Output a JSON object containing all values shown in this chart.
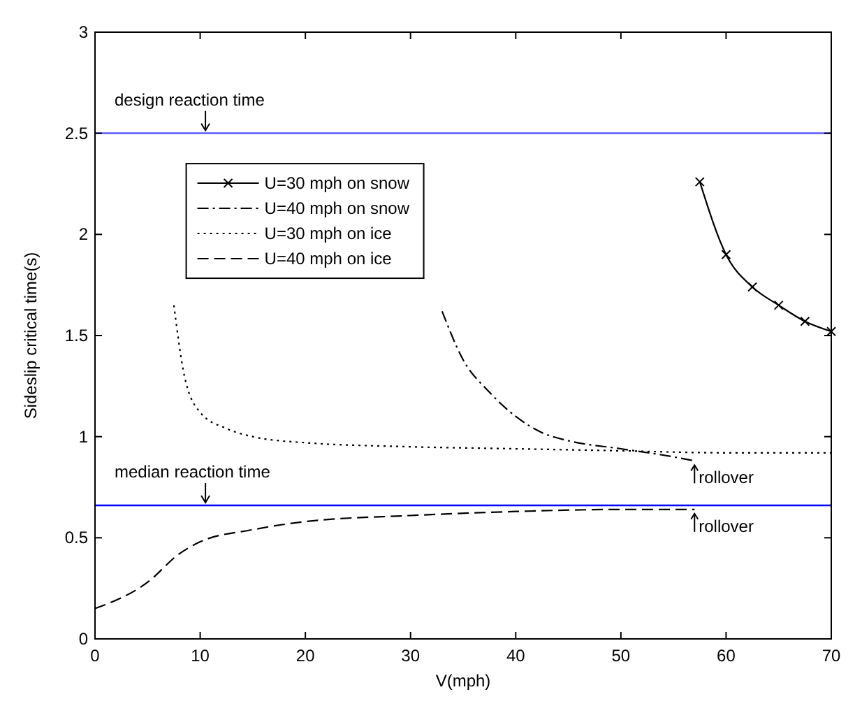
{
  "chart_data": {
    "type": "line",
    "xlabel": "V(mph)",
    "ylabel": "Sideslip critical time(s)",
    "xlim": [
      0,
      70
    ],
    "xticks": [
      0,
      10,
      20,
      30,
      40,
      50,
      60,
      70
    ],
    "ylim": [
      0,
      3
    ],
    "yticks": [
      0,
      0.5,
      1,
      1.5,
      2,
      2.5,
      3
    ],
    "grid": false,
    "legend": "top left",
    "series": [
      {
        "name": "U=30 mph on snow",
        "color": "#000000",
        "marker": "cross",
        "line_style": "solid",
        "x": [
          57.5,
          60,
          62.5,
          65,
          67.5,
          70
        ],
        "values": [
          2.26,
          1.9,
          1.74,
          1.65,
          1.57,
          1.52
        ]
      },
      {
        "name": "U=40 mph on snow",
        "color": "#000000",
        "marker": "none",
        "line_style": "dashdot",
        "x": [
          33,
          35,
          37.5,
          40,
          42.5,
          45,
          50,
          55,
          57
        ],
        "values": [
          1.62,
          1.38,
          1.22,
          1.1,
          1.02,
          0.98,
          0.94,
          0.9,
          0.88
        ]
      },
      {
        "name": "U=30 mph on ice",
        "color": "#000000",
        "marker": "none",
        "line_style": "dotted",
        "x": [
          7.5,
          8.5,
          10,
          12.5,
          15,
          20,
          30,
          40,
          50,
          60,
          70
        ],
        "values": [
          1.65,
          1.3,
          1.12,
          1.04,
          1.0,
          0.97,
          0.95,
          0.94,
          0.93,
          0.92,
          0.92
        ]
      },
      {
        "name": "U=40 mph on ice",
        "color": "#000000",
        "marker": "none",
        "line_style": "dashed",
        "x": [
          0,
          5,
          8,
          10,
          15,
          20,
          30,
          40,
          50,
          57
        ],
        "values": [
          0.15,
          0.28,
          0.42,
          0.48,
          0.54,
          0.58,
          0.61,
          0.63,
          0.64,
          0.64
        ]
      }
    ],
    "ref_lines": [
      {
        "axis": "y",
        "value": 2.5,
        "label": "design reaction time",
        "color": "#6666ff"
      },
      {
        "axis": "y",
        "value": 0.66,
        "label": "median reaction time",
        "color": "#0000ff"
      }
    ],
    "annotations": [
      {
        "text": "rollover",
        "x": 57,
        "y": 0.88
      },
      {
        "text": "rollover",
        "x": 57,
        "y": 0.64
      }
    ]
  }
}
